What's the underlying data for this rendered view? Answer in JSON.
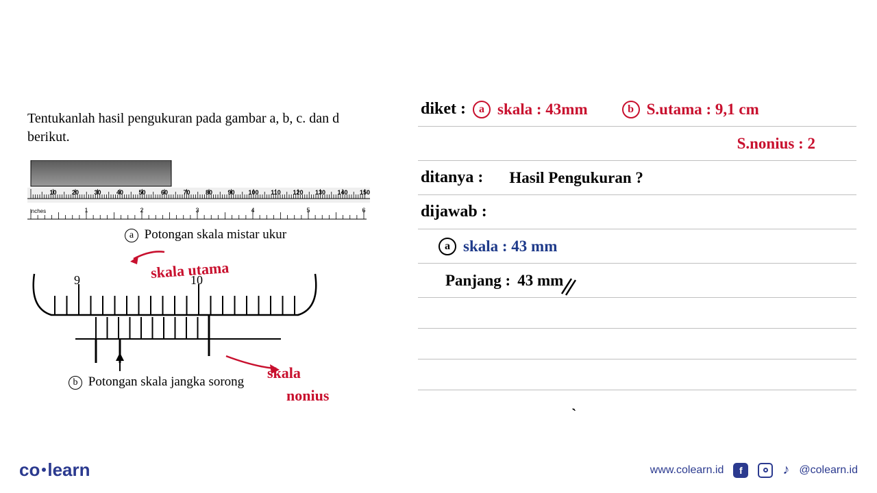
{
  "problem": {
    "text": "Tentukanlah hasil pengukuran pada gambar a, b, c. dan d berikut."
  },
  "ruler": {
    "mm_ticks": [
      10,
      20,
      30,
      40,
      50,
      60,
      70,
      80,
      90,
      100,
      110,
      120,
      130,
      140,
      150
    ],
    "inch_ticks": [
      1,
      2,
      3,
      4,
      5,
      6
    ],
    "inches_label": "inches",
    "shade_color": "#7a7a7a",
    "shade_end_mm": 43
  },
  "caption_a": {
    "letter": "a",
    "text": "Potongan skala mistar ukur"
  },
  "caption_b": {
    "letter": "b",
    "text": "Potongan skala jangka sorong"
  },
  "annotations": {
    "skala_utama": "skala  utama",
    "skala": "skala",
    "nonius": "nonius"
  },
  "vernier": {
    "main_labels": [
      "9",
      "10"
    ],
    "arrow_color": "#c8102e"
  },
  "notes": {
    "line1_diket": "diket :",
    "line1_a_letter": "a",
    "line1_a_text": "skala : 43mm",
    "line1_b_letter": "b",
    "line1_b_text": "S.utama :  9,1 cm",
    "line2_text": "S.nonius  :    2",
    "line3_label": "ditanya :",
    "line3_text": "Hasil  Pengukuran ?",
    "line4_label": "dijawab :",
    "line5_letter": "a",
    "line5_text": "skala : 43 mm",
    "line6_label": "Panjang :",
    "line6_value": "43 mm"
  },
  "footer": {
    "logo_co": "co",
    "logo_dot": ".",
    "logo_learn": "learn",
    "url": "www.colearn.id",
    "handle": "@colearn.id"
  },
  "colors": {
    "red": "#c8102e",
    "blue": "#1e3a8a",
    "brand": "#2b3a8f",
    "line": "#bfbfbf"
  }
}
